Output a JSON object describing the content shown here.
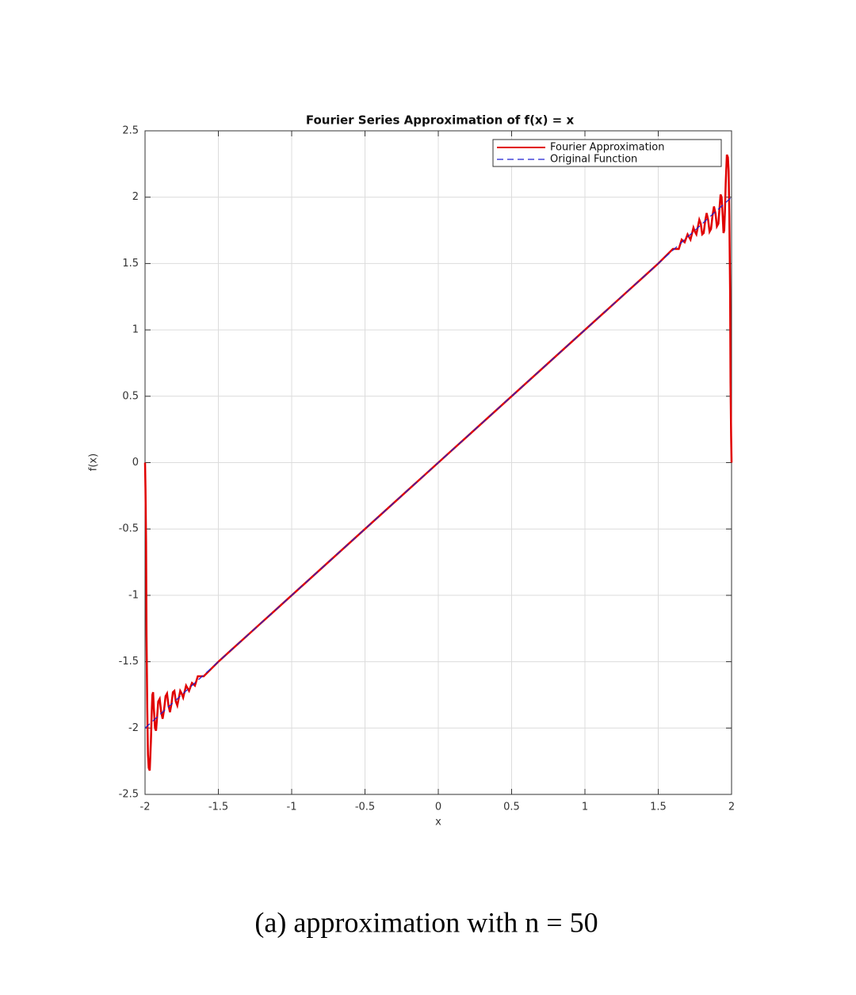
{
  "chart_data": {
    "type": "line",
    "title": "Fourier Series Approximation of f(x) = x",
    "xlabel": "x",
    "ylabel": "f(x)",
    "caption": "(a) approximation with n = 50",
    "xlim": [
      -2,
      2
    ],
    "ylim": [
      -2.5,
      2.5
    ],
    "xticks": [
      -2,
      -1.5,
      -1,
      -0.5,
      0,
      0.5,
      1,
      1.5,
      2
    ],
    "yticks": [
      -2.5,
      -2,
      -1.5,
      -1,
      -0.5,
      0,
      0.5,
      1,
      1.5,
      2,
      2.5
    ],
    "grid": true,
    "legend": "upper right",
    "series": [
      {
        "name": "Fourier Approximation",
        "color": "#e00000",
        "style": "solid",
        "x": [
          -2,
          -1.997,
          -1.993,
          -1.99,
          -1.985,
          -1.98,
          -1.975,
          -1.968,
          -1.96,
          -1.955,
          -1.95,
          -1.945,
          -1.94,
          -1.932,
          -1.925,
          -1.918,
          -1.91,
          -1.9,
          -1.89,
          -1.88,
          -1.87,
          -1.86,
          -1.85,
          -1.84,
          -1.83,
          -1.82,
          -1.81,
          -1.8,
          -1.79,
          -1.78,
          -1.76,
          -1.75,
          -1.74,
          -1.72,
          -1.7,
          -1.68,
          -1.66,
          -1.64,
          -1.6,
          -1.5,
          -1.4,
          -1.3,
          -1.2,
          -1.1,
          -1,
          -0.9,
          -0.8,
          -0.7,
          -0.6,
          -0.5,
          -0.4,
          -0.3,
          -0.2,
          -0.1,
          0,
          0.1,
          0.2,
          0.3,
          0.4,
          0.5,
          0.6,
          0.7,
          0.8,
          0.9,
          1,
          1.1,
          1.2,
          1.3,
          1.4,
          1.5,
          1.6,
          1.64,
          1.66,
          1.68,
          1.7,
          1.72,
          1.74,
          1.75,
          1.76,
          1.78,
          1.79,
          1.8,
          1.81,
          1.82,
          1.83,
          1.84,
          1.85,
          1.86,
          1.87,
          1.88,
          1.89,
          1.9,
          1.91,
          1.918,
          1.925,
          1.932,
          1.94,
          1.945,
          1.95,
          1.955,
          1.96,
          1.968,
          1.975,
          1.98,
          1.985,
          1.99,
          1.993,
          1.997,
          2
        ],
        "values": [
          0,
          -0.2,
          -0.6,
          -1.3,
          -1.85,
          -2.2,
          -2.3,
          -2.32,
          -2.1,
          -1.9,
          -1.75,
          -1.73,
          -1.85,
          -2.0,
          -2.02,
          -1.92,
          -1.8,
          -1.78,
          -1.88,
          -1.93,
          -1.86,
          -1.76,
          -1.74,
          -1.83,
          -1.88,
          -1.82,
          -1.73,
          -1.72,
          -1.8,
          -1.83,
          -1.72,
          -1.74,
          -1.77,
          -1.68,
          -1.72,
          -1.66,
          -1.68,
          -1.61,
          -1.61,
          -1.5,
          -1.4,
          -1.3,
          -1.2,
          -1.1,
          -1,
          -0.9,
          -0.8,
          -0.7,
          -0.6,
          -0.5,
          -0.4,
          -0.3,
          -0.2,
          -0.1,
          0,
          0.1,
          0.2,
          0.3,
          0.4,
          0.5,
          0.6,
          0.7,
          0.8,
          0.9,
          1,
          1.1,
          1.2,
          1.3,
          1.4,
          1.5,
          1.61,
          1.61,
          1.68,
          1.66,
          1.72,
          1.68,
          1.77,
          1.74,
          1.72,
          1.83,
          1.8,
          1.72,
          1.73,
          1.82,
          1.88,
          1.83,
          1.74,
          1.76,
          1.86,
          1.93,
          1.88,
          1.78,
          1.8,
          1.92,
          2.02,
          2.0,
          1.85,
          1.73,
          1.75,
          1.9,
          2.1,
          2.32,
          2.3,
          2.2,
          1.85,
          1.3,
          0.6,
          0.2,
          0
        ]
      },
      {
        "name": "Original Function",
        "color": "#2020d0",
        "style": "dashed",
        "x": [
          -2,
          2
        ],
        "values": [
          -2,
          2
        ]
      }
    ]
  }
}
